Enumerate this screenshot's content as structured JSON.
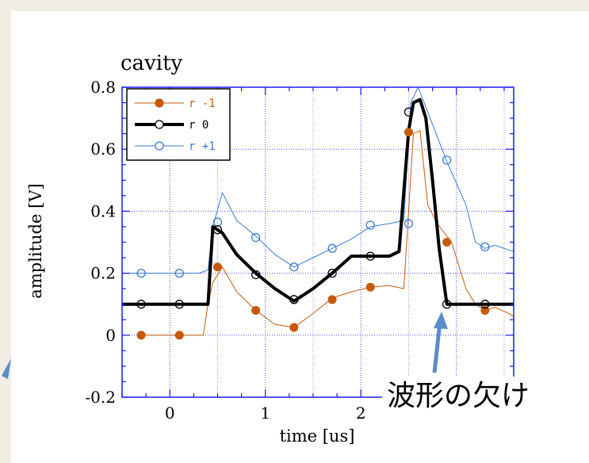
{
  "annotation": "波形の欠け",
  "colors": {
    "page_background": "#efede4",
    "plot_frame": "#1a1aff",
    "grid": "#4a4af0",
    "arrow": "#5b8bc8"
  },
  "chart_data": {
    "type": "line",
    "title": "cavity",
    "xlabel": "time [us]",
    "ylabel": "amplitude [V]",
    "xlim": [
      -0.5,
      3.6
    ],
    "ylim": [
      -0.2,
      0.8
    ],
    "xticks": [
      0,
      1,
      2
    ],
    "yticks": [
      -0.2,
      0,
      0.2,
      0.4,
      0.6,
      0.8
    ],
    "ytick_labels": [
      "-0.2",
      "0",
      "0.2",
      "0.4",
      "0.6",
      "0.8"
    ],
    "grid": true,
    "legend_position": "top-left",
    "series": [
      {
        "name": "r  -1",
        "color": "#c65a0a",
        "line_width": 1,
        "marker": "filled-circle",
        "x": [
          -0.3,
          -0.2,
          0.0,
          0.2,
          0.35,
          0.4,
          0.45,
          0.55,
          0.7,
          0.9,
          1.1,
          1.3,
          1.5,
          1.7,
          1.9,
          2.1,
          2.3,
          2.45,
          2.55,
          2.62,
          2.7,
          2.8,
          2.95,
          3.1,
          3.2,
          3.3,
          3.4,
          3.55,
          3.6
        ],
        "y": [
          0.0,
          0.0,
          0.0,
          0.0,
          0.0,
          0.1,
          0.17,
          0.22,
          0.14,
          0.08,
          0.035,
          0.025,
          0.07,
          0.12,
          0.14,
          0.155,
          0.16,
          0.15,
          0.65,
          0.66,
          0.42,
          0.36,
          0.3,
          0.15,
          0.1,
          0.08,
          0.09,
          0.07,
          0.06
        ],
        "marker_x": [
          -0.3,
          0.1,
          0.5,
          0.9,
          1.3,
          1.7,
          2.1,
          2.5,
          2.9,
          3.3
        ],
        "marker_y": [
          0.0,
          0.0,
          0.22,
          0.08,
          0.025,
          0.115,
          0.155,
          0.655,
          0.3,
          0.08
        ]
      },
      {
        "name": "r  0",
        "color": "#000000",
        "line_width": 4,
        "marker": "open-circle",
        "x": [
          -0.5,
          -0.3,
          0.1,
          0.3,
          0.4,
          0.45,
          0.55,
          0.7,
          0.9,
          1.1,
          1.3,
          1.5,
          1.7,
          1.9,
          2.1,
          2.3,
          2.4,
          2.5,
          2.55,
          2.62,
          2.68,
          2.75,
          2.82,
          2.9,
          3.0,
          3.1,
          3.3,
          3.6
        ],
        "y": [
          0.1,
          0.1,
          0.1,
          0.1,
          0.1,
          0.35,
          0.33,
          0.26,
          0.2,
          0.15,
          0.11,
          0.15,
          0.2,
          0.255,
          0.255,
          0.255,
          0.27,
          0.66,
          0.75,
          0.76,
          0.7,
          0.5,
          0.28,
          0.1,
          0.1,
          0.1,
          0.1,
          0.1
        ],
        "marker_x": [
          -0.3,
          0.1,
          0.5,
          0.9,
          1.3,
          1.7,
          2.1,
          2.5,
          2.9,
          3.3
        ],
        "marker_y": [
          0.1,
          0.1,
          0.34,
          0.195,
          0.115,
          0.2,
          0.255,
          0.72,
          0.1,
          0.1
        ]
      },
      {
        "name": "r  +1",
        "color": "#3a7bd5",
        "line_width": 1,
        "marker": "open-circle",
        "x": [
          -0.5,
          -0.3,
          0.1,
          0.3,
          0.4,
          0.45,
          0.55,
          0.7,
          0.9,
          1.1,
          1.3,
          1.5,
          1.7,
          1.9,
          2.1,
          2.3,
          2.45,
          2.52,
          2.6,
          2.7,
          2.9,
          3.1,
          3.2,
          3.3,
          3.4,
          3.6
        ],
        "y": [
          0.2,
          0.2,
          0.2,
          0.2,
          0.21,
          0.35,
          0.46,
          0.37,
          0.32,
          0.26,
          0.22,
          0.25,
          0.28,
          0.31,
          0.35,
          0.36,
          0.37,
          0.75,
          0.8,
          0.72,
          0.56,
          0.42,
          0.3,
          0.28,
          0.29,
          0.27
        ],
        "marker_x": [
          -0.3,
          0.1,
          0.5,
          0.9,
          1.3,
          1.7,
          2.1,
          2.5,
          2.9,
          3.3
        ],
        "marker_y": [
          0.2,
          0.2,
          0.365,
          0.315,
          0.22,
          0.28,
          0.355,
          0.36,
          0.565,
          0.285
        ]
      }
    ]
  }
}
